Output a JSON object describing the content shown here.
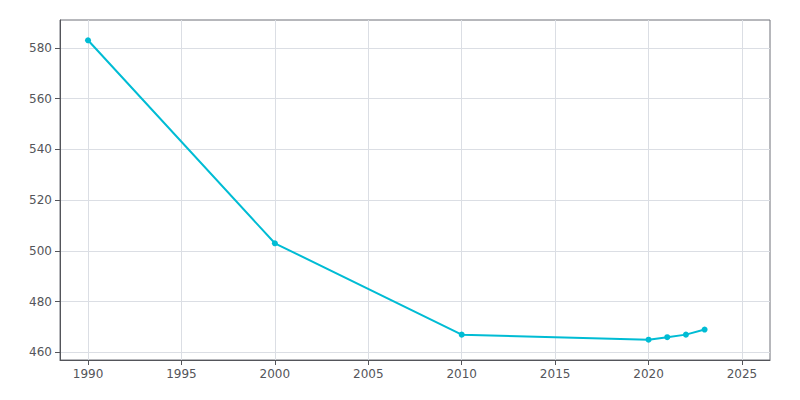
{
  "chart_data": {
    "type": "line",
    "x": [
      1990,
      2000,
      2010,
      2020,
      2021,
      2022,
      2023
    ],
    "values": [
      583,
      503,
      467,
      465,
      466,
      467,
      469
    ],
    "color": "#00bcd4",
    "marker": "circle",
    "xlim": [
      1988.5,
      2026.5
    ],
    "ylim": [
      457,
      591
    ],
    "xticks": [
      1990,
      1995,
      2000,
      2005,
      2010,
      2015,
      2020,
      2025
    ],
    "yticks": [
      460,
      480,
      500,
      520,
      540,
      560,
      580
    ],
    "grid": true
  }
}
